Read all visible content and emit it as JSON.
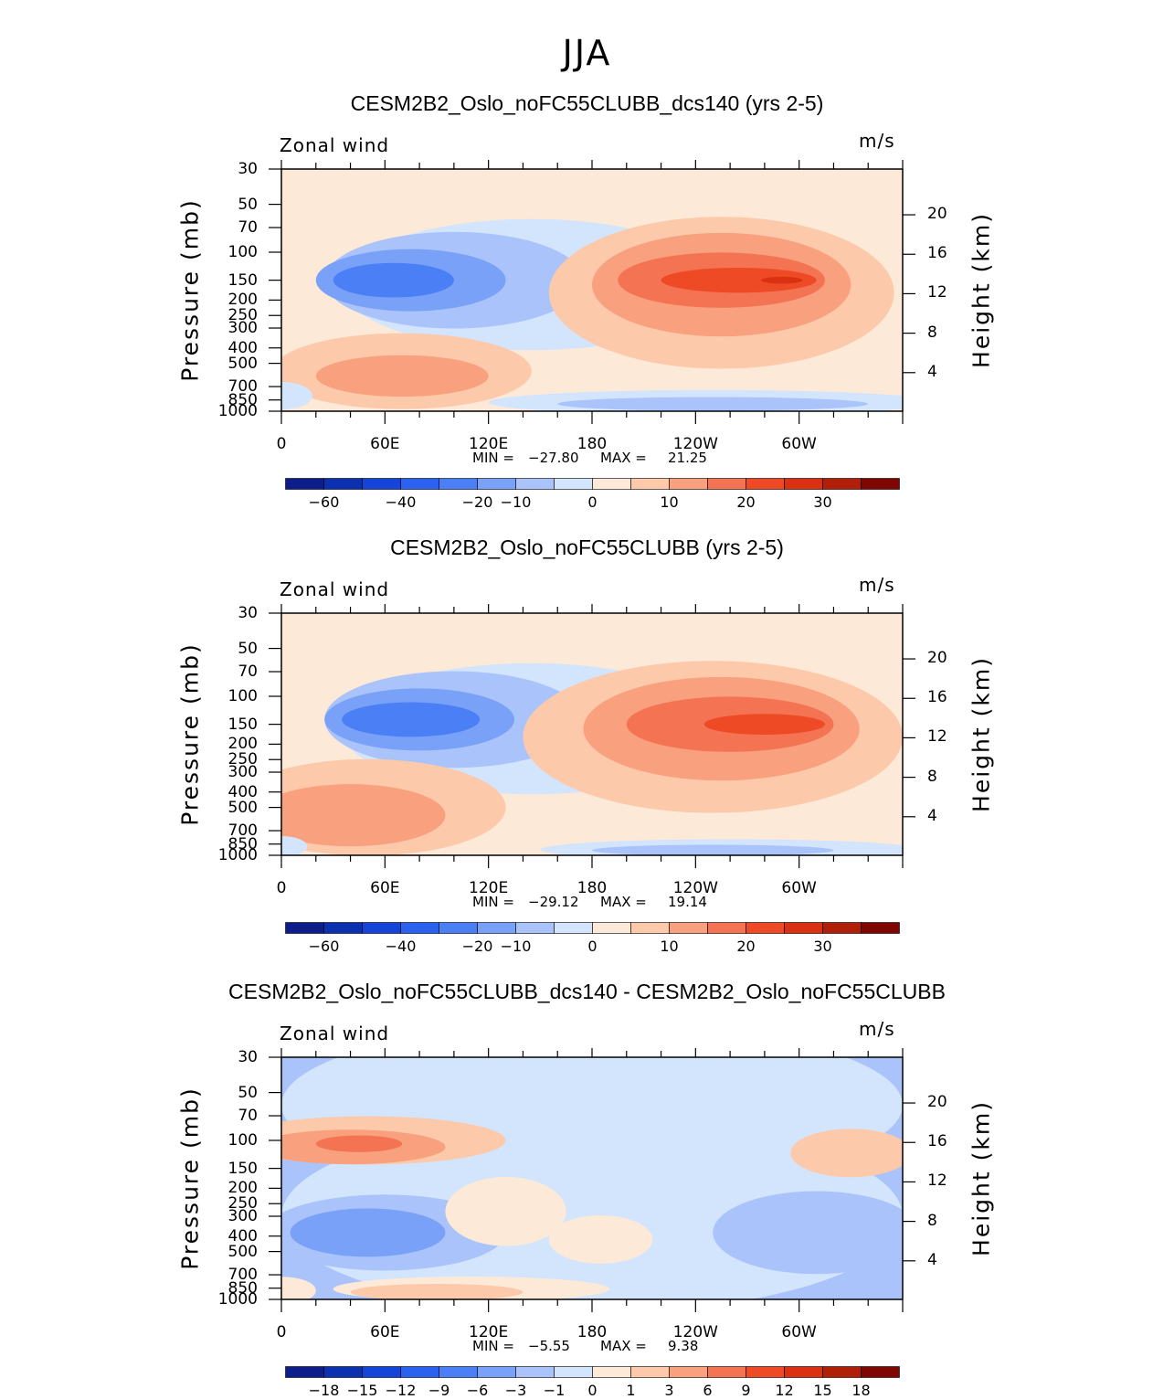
{
  "figure": {
    "title": "JJA",
    "ylabel_left": "Pressure (mb)",
    "ylabel_right": "Height (km)",
    "pressure_ticks": [
      "30",
      "50",
      "70",
      "100",
      "150",
      "200",
      "250",
      "300",
      "400",
      "500",
      "700",
      "850",
      "1000"
    ],
    "height_ticks": [
      "20",
      "16",
      "12",
      "8",
      "4"
    ],
    "x_ticks": [
      "0",
      "60E",
      "120E",
      "180",
      "120W",
      "60W"
    ],
    "min_label": "MIN =",
    "max_label": "MAX ="
  },
  "chart_data": [
    {
      "type": "heatmap",
      "title": "CESM2B2_Oslo_noFC55CLUBB_dcs140 (yrs 2-5)",
      "variable": "Zonal wind",
      "units": "m/s",
      "min": "−27.80",
      "max": "21.25",
      "xlim": [
        0,
        360
      ],
      "ylim_pressure": [
        1000,
        30
      ],
      "colorbar_labels": [
        "−60",
        "−40",
        "−20",
        "−10",
        "0",
        "10",
        "20",
        "30"
      ],
      "colors": [
        "#0d1d8a",
        "#0b30b0",
        "#1445d8",
        "#2a62ef",
        "#4b7ff5",
        "#7aa1f8",
        "#aac4fb",
        "#d3e5fd",
        "#fde9d7",
        "#fcc9ab",
        "#f9a07e",
        "#f47352",
        "#ee4a25",
        "#d93112",
        "#b01f08",
        "#7e0703"
      ]
    },
    {
      "type": "heatmap",
      "title": "CESM2B2_Oslo_noFC55CLUBB (yrs 2-5)",
      "variable": "Zonal wind",
      "units": "m/s",
      "min": "−29.12",
      "max": "19.14",
      "xlim": [
        0,
        360
      ],
      "ylim_pressure": [
        1000,
        30
      ],
      "colorbar_labels": [
        "−60",
        "−40",
        "−20",
        "−10",
        "0",
        "10",
        "20",
        "30"
      ],
      "colors": [
        "#0d1d8a",
        "#0b30b0",
        "#1445d8",
        "#2a62ef",
        "#4b7ff5",
        "#7aa1f8",
        "#aac4fb",
        "#d3e5fd",
        "#fde9d7",
        "#fcc9ab",
        "#f9a07e",
        "#f47352",
        "#ee4a25",
        "#d93112",
        "#b01f08",
        "#7e0703"
      ]
    },
    {
      "type": "heatmap",
      "title": "CESM2B2_Oslo_noFC55CLUBB_dcs140 - CESM2B2_Oslo_noFC55CLUBB",
      "variable": "Zonal wind",
      "units": "m/s",
      "min": "−5.55",
      "max": "9.38",
      "xlim": [
        0,
        360
      ],
      "ylim_pressure": [
        1000,
        30
      ],
      "colorbar_labels": [
        "−18",
        "−15",
        "−12",
        "−9",
        "−6",
        "−3",
        "−1",
        "0",
        "1",
        "3",
        "6",
        "9",
        "12",
        "15",
        "18"
      ],
      "colors": [
        "#0d1d8a",
        "#0b30b0",
        "#1445d8",
        "#2a62ef",
        "#4b7ff5",
        "#7aa1f8",
        "#aac4fb",
        "#d3e5fd",
        "#fde9d7",
        "#fcc9ab",
        "#f9a07e",
        "#f47352",
        "#ee4a25",
        "#d93112",
        "#b01f08",
        "#7e0703"
      ]
    }
  ]
}
